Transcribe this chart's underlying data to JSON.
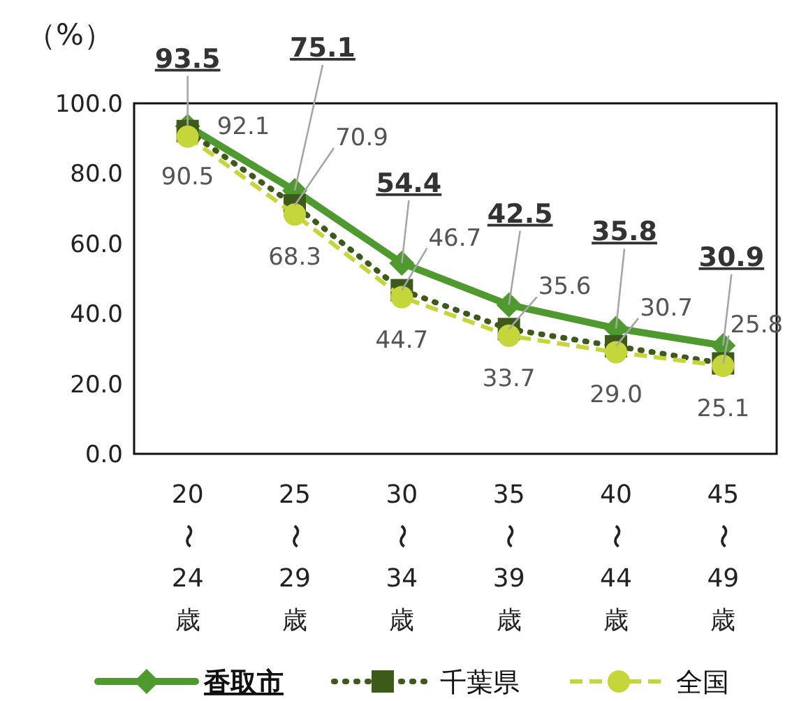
{
  "chart_data": {
    "type": "line",
    "ylabel": "（%）",
    "categories": [
      "20〜24歳",
      "25〜29歳",
      "30〜34歳",
      "35〜39歳",
      "40〜44歳",
      "45〜49歳"
    ],
    "series": [
      {
        "name": "香取市",
        "color": "#4e9a2f",
        "marker": "diamond",
        "line_style": "solid",
        "values": [
          93.5,
          75.1,
          54.4,
          42.5,
          35.8,
          30.9
        ],
        "value_labels": [
          "93.5",
          "75.1",
          "54.4",
          "42.5",
          "35.8",
          "30.9"
        ]
      },
      {
        "name": "千葉県",
        "color": "#3d5a1a",
        "marker": "square",
        "line_style": "dotted",
        "values": [
          92.1,
          70.9,
          46.7,
          35.6,
          30.7,
          25.8
        ],
        "value_labels": [
          "92.1",
          "70.9",
          "46.7",
          "35.6",
          "30.7",
          "25.8"
        ]
      },
      {
        "name": "全国",
        "color": "#c5d63a",
        "marker": "circle",
        "line_style": "dashed",
        "values": [
          90.5,
          68.3,
          44.7,
          33.7,
          29.0,
          25.1
        ],
        "value_labels": [
          "90.5",
          "68.3",
          "44.7",
          "33.7",
          "29.0",
          "25.1"
        ]
      }
    ],
    "ylim": [
      0,
      100
    ],
    "yticks": [
      {
        "value": 0,
        "label": "0.0"
      },
      {
        "value": 20,
        "label": "20.0"
      },
      {
        "value": 40,
        "label": "40.0"
      },
      {
        "value": 60,
        "label": "60.0"
      },
      {
        "value": 80,
        "label": "80.0"
      },
      {
        "value": 100,
        "label": "100.0"
      }
    ],
    "grid": false,
    "legend": "bottom"
  }
}
